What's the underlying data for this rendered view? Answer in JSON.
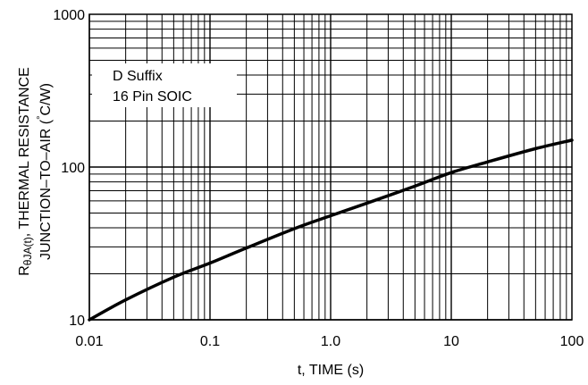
{
  "chart_data": {
    "type": "line",
    "xlabel": "t, TIME (s)",
    "ylabel_line1": "R",
    "ylabel_sub": "θJA(t)",
    "ylabel_line1_rest": ", THERMAL RESISTANCE",
    "ylabel_line2_pre": "JUNCTION–TO–AIR (",
    "ylabel_deg": "°",
    "ylabel_line2_post": "C/W)",
    "xscale": "log",
    "yscale": "log",
    "xlim": [
      0.01,
      100
    ],
    "ylim": [
      10,
      1000
    ],
    "grid": true,
    "x_ticks": [
      {
        "value": 0.01,
        "label": "0.01"
      },
      {
        "value": 0.1,
        "label": "0.1"
      },
      {
        "value": 1,
        "label": "1.0"
      },
      {
        "value": 10,
        "label": "10"
      },
      {
        "value": 100,
        "label": "100"
      }
    ],
    "y_ticks": [
      {
        "value": 10,
        "label": "10"
      },
      {
        "value": 100,
        "label": "100"
      },
      {
        "value": 1000,
        "label": "1000"
      }
    ],
    "annotations": [
      "D Suffix",
      "16 Pin SOIC"
    ],
    "series": [
      {
        "x": [
          0.01,
          0.02,
          0.05,
          0.1,
          0.2,
          0.5,
          1,
          2,
          5,
          10,
          20,
          50,
          100
        ],
        "y": [
          10,
          13.5,
          19,
          23.5,
          29.5,
          39.5,
          48,
          58,
          75,
          92,
          108,
          132,
          150
        ]
      }
    ]
  }
}
